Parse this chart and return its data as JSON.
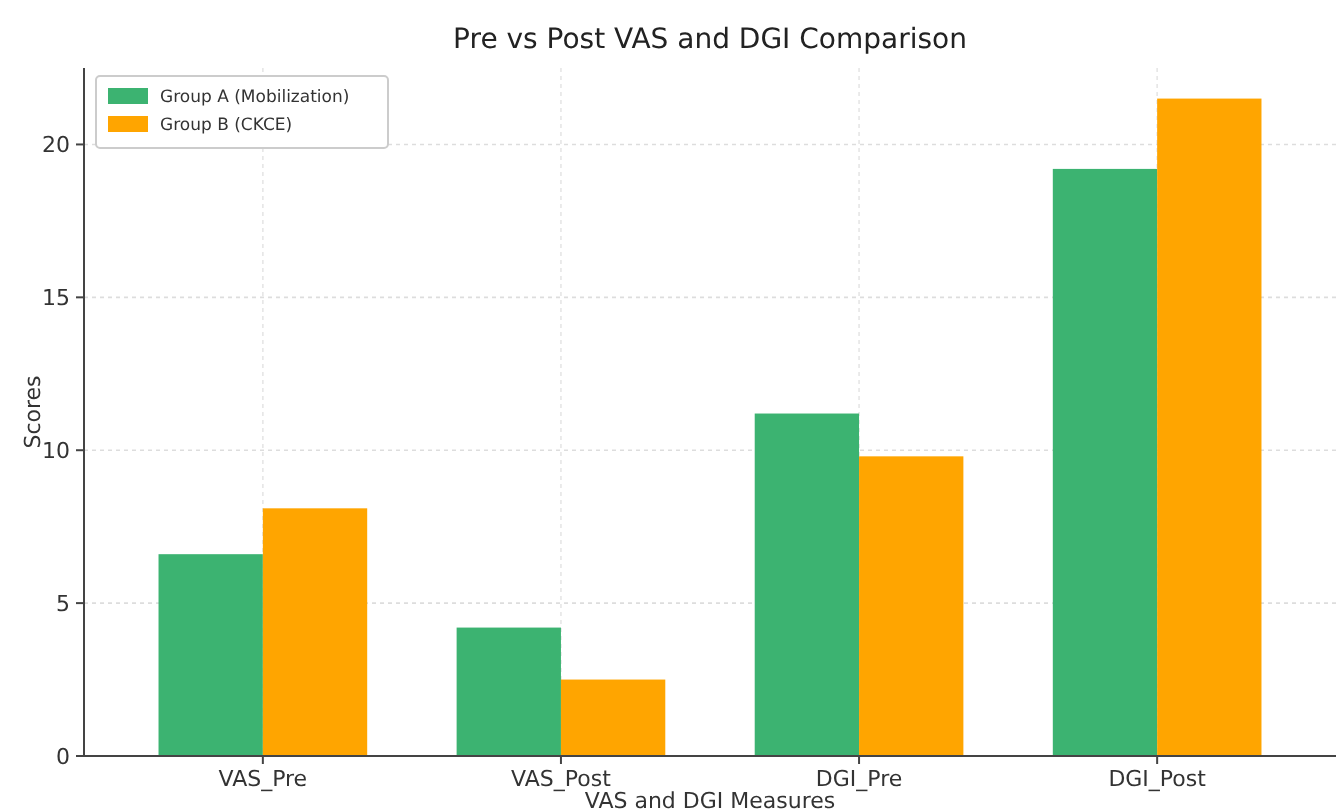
{
  "chart_data": {
    "type": "bar",
    "title": "Pre vs Post VAS and DGI Comparison",
    "xlabel": "VAS and DGI Measures",
    "ylabel": "Scores",
    "categories": [
      "VAS_Pre",
      "VAS_Post",
      "DGI_Pre",
      "DGI_Post"
    ],
    "series": [
      {
        "name": "Group A (Mobilization)",
        "color": "#3cb371",
        "values": [
          6.6,
          4.2,
          11.2,
          19.2
        ]
      },
      {
        "name": "Group B (CKCE)",
        "color": "#ffa500",
        "values": [
          8.1,
          2.5,
          9.8,
          21.5
        ]
      }
    ],
    "ylim": [
      0,
      22.5
    ],
    "yticks": [
      0,
      5,
      10,
      15,
      20
    ],
    "grid": true,
    "legend": "top left"
  }
}
